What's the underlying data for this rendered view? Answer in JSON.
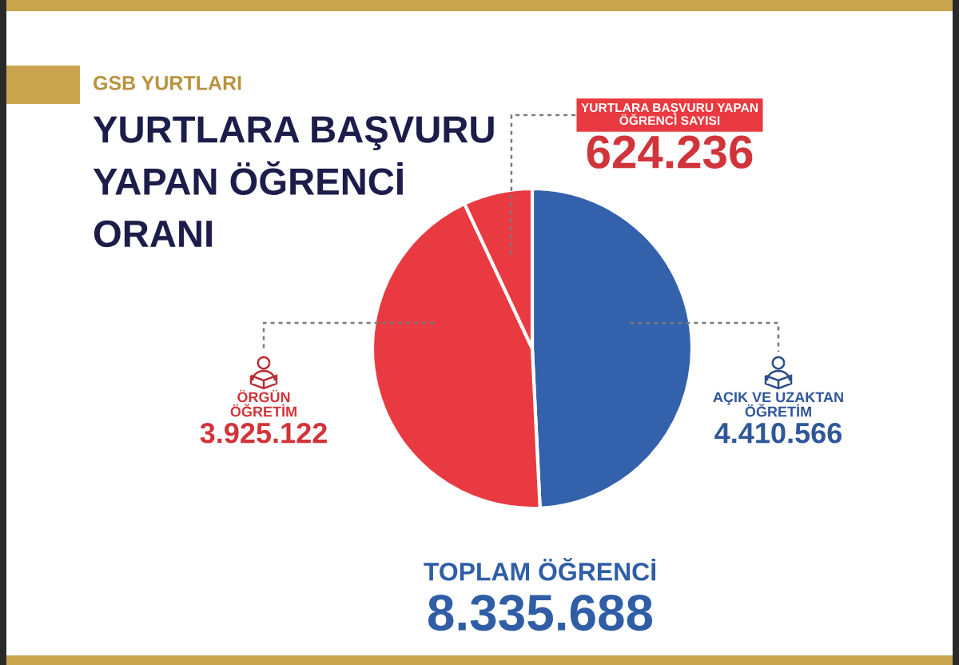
{
  "chart_data": {
    "type": "pie",
    "title": "YURTLARA BAŞVURU\nYAPAN ÖĞRENCİ\nORANI",
    "categories": [
      "AÇIK VE UZAKTAN\nÖĞRETİM",
      "ÖRGÜN\nÖĞRETİM",
      "YURTLARA BAŞVURU YAPAN\nÖĞRENCİ SAYISI"
    ],
    "values": [
      4410566,
      3925122,
      624236
    ],
    "colors": [
      "#3461ab",
      "#e83a40",
      "#e83a40"
    ],
    "value_labels": [
      "4.410.566",
      "3.925.122",
      "624.236"
    ],
    "annotations": [
      "GSB YURTLARI",
      "TOPLAM ÖĞRENCİ",
      "8.335.688"
    ]
  }
}
